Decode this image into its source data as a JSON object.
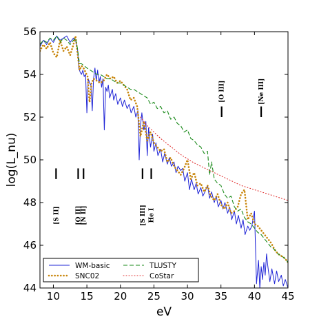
{
  "chart_data": {
    "type": "line",
    "xlabel": "eV",
    "ylabel": "log(L_nu)",
    "xlim": [
      8,
      45
    ],
    "ylim": [
      44,
      56
    ],
    "xticks": [
      10,
      15,
      20,
      25,
      30,
      35,
      40,
      45
    ],
    "yticks": [
      44,
      46,
      48,
      50,
      52,
      54,
      56
    ],
    "legend_position": "lower-left",
    "series": [
      {
        "name": "WM-basic",
        "color": "#1f24d6",
        "style": "solid",
        "x": [
          8,
          8.5,
          9,
          9.5,
          10,
          10.5,
          11,
          11.5,
          12,
          12.5,
          13,
          13.3,
          13.6,
          13.8,
          14.0,
          14.2,
          14.4,
          14.6,
          14.8,
          15.0,
          15.2,
          15.4,
          15.6,
          15.8,
          16.0,
          16.2,
          16.4,
          16.6,
          16.8,
          17.0,
          17.2,
          17.4,
          17.6,
          17.8,
          18.0,
          18.2,
          18.4,
          18.6,
          18.8,
          19.0,
          19.3,
          19.6,
          20.0,
          20.3,
          20.6,
          21.0,
          21.3,
          21.6,
          22.0,
          22.3,
          22.6,
          22.8,
          23.0,
          23.2,
          23.5,
          23.8,
          24.0,
          24.2,
          24.5,
          24.8,
          25.0,
          25.3,
          25.6,
          26.0,
          26.3,
          26.6,
          27.0,
          27.3,
          27.6,
          28.0,
          28.3,
          28.6,
          29.0,
          29.3,
          29.6,
          30.0,
          30.3,
          30.6,
          31.0,
          31.3,
          31.6,
          32.0,
          32.3,
          32.6,
          33.0,
          33.3,
          33.6,
          34.0,
          34.3,
          34.6,
          35.0,
          35.3,
          35.6,
          36.0,
          36.3,
          36.6,
          37.0,
          37.3,
          37.6,
          38.0,
          38.3,
          38.6,
          39.0,
          39.3,
          39.6,
          40.0,
          40.3,
          40.6,
          40.8,
          41.0,
          41.2,
          41.4,
          41.6,
          41.8,
          42.0,
          42.3,
          42.6,
          43.0,
          43.3,
          43.6,
          44.0,
          44.3,
          44.6,
          45.0
        ],
        "y": [
          55.3,
          55.6,
          55.4,
          55.7,
          55.5,
          55.8,
          55.6,
          55.7,
          55.8,
          55.5,
          55.7,
          55.6,
          55.2,
          54.3,
          54.1,
          54.0,
          54.2,
          53.9,
          54.0,
          52.2,
          53.8,
          53.6,
          53.5,
          52.3,
          53.8,
          54.3,
          53.7,
          54.2,
          53.6,
          53.9,
          53.4,
          53.8,
          51.4,
          53.4,
          53.2,
          53.5,
          52.9,
          53.1,
          53.3,
          52.8,
          53.1,
          52.6,
          52.9,
          52.5,
          52.8,
          52.4,
          52.6,
          52.2,
          52.5,
          52.0,
          52.3,
          50.0,
          51.6,
          52.2,
          51.4,
          51.8,
          50.2,
          51.5,
          50.6,
          51.2,
          50.4,
          50.8,
          50.2,
          50.5,
          49.9,
          50.3,
          49.8,
          50.1,
          49.7,
          49.9,
          49.4,
          49.7,
          49.5,
          49.6,
          49.0,
          49.4,
          48.6,
          49.1,
          48.6,
          48.9,
          48.4,
          48.7,
          48.3,
          48.5,
          48.8,
          48.2,
          48.5,
          48.0,
          48.3,
          47.8,
          48.1,
          47.7,
          48.0,
          47.5,
          47.8,
          47.2,
          47.6,
          47.0,
          47.4,
          46.8,
          47.2,
          46.5,
          46.9,
          46.7,
          46.9,
          47.6,
          44.2,
          45.3,
          44.0,
          45.0,
          44.4,
          45.2,
          44.6,
          45.6,
          45.0,
          44.3,
          44.9,
          44.2,
          44.8,
          44.3,
          44.6,
          44.1,
          44.4,
          44.0
        ]
      },
      {
        "name": "SNC02",
        "color": "#c8850a",
        "style": "dotted",
        "x": [
          8,
          8.5,
          9,
          9.5,
          10,
          10.5,
          11,
          11.5,
          12,
          12.5,
          13,
          13.3,
          13.6,
          13.9,
          14.2,
          14.5,
          14.8,
          15.1,
          15.4,
          15.7,
          16.0,
          16.5,
          17.0,
          17.5,
          18.0,
          18.5,
          19.0,
          19.5,
          20.0,
          20.5,
          21.0,
          21.5,
          22.0,
          22.5,
          23.0,
          23.5,
          24.0,
          24.5,
          25.0,
          25.5,
          26.0,
          26.5,
          27.0,
          27.5,
          28.0,
          28.5,
          29.0,
          29.5,
          30.0,
          30.5,
          31.0,
          31.5,
          32.0,
          32.5,
          33.0,
          33.5,
          34.0,
          34.5,
          35.0,
          35.5,
          36.0,
          36.5,
          37.0,
          37.5,
          38.0,
          38.5,
          39.0,
          39.5,
          40.0,
          40.5,
          41.0,
          41.5,
          42.0,
          42.5,
          43.0,
          43.5,
          44.0,
          44.5,
          45.0
        ],
        "y": [
          55.1,
          55.4,
          55.2,
          55.5,
          55.0,
          54.8,
          55.6,
          55.1,
          55.3,
          54.9,
          55.4,
          55.8,
          55.0,
          54.2,
          54.4,
          54.3,
          54.1,
          53.9,
          52.7,
          53.6,
          53.8,
          53.7,
          53.6,
          53.7,
          54.0,
          53.8,
          53.9,
          53.6,
          53.7,
          53.5,
          53.3,
          52.8,
          52.9,
          52.5,
          51.1,
          51.8,
          50.9,
          51.3,
          50.8,
          50.6,
          50.4,
          50.5,
          49.9,
          50.1,
          49.7,
          49.5,
          49.3,
          49.6,
          50.0,
          49.1,
          49.4,
          48.8,
          48.9,
          48.5,
          48.8,
          48.3,
          48.1,
          48.4,
          47.9,
          47.7,
          48.0,
          47.5,
          47.6,
          47.8,
          48.4,
          48.6,
          47.2,
          47.5,
          47.0,
          46.9,
          46.7,
          46.5,
          46.3,
          46.1,
          45.8,
          45.6,
          45.5,
          45.4,
          45.2
        ]
      },
      {
        "name": "TLUSTY",
        "color": "#1a8a1a",
        "style": "dashed",
        "x": [
          8,
          8.5,
          9,
          9.5,
          10,
          10.5,
          11,
          11.5,
          12,
          12.5,
          13,
          13.3,
          13.6,
          13.9,
          14.2,
          14.6,
          15.0,
          15.5,
          16.0,
          16.5,
          17.0,
          17.5,
          18.0,
          18.5,
          19.0,
          19.5,
          20.0,
          20.5,
          21.0,
          21.5,
          22.0,
          22.5,
          23.0,
          23.5,
          24.0,
          24.5,
          25.0,
          25.5,
          26.0,
          26.5,
          27.0,
          27.5,
          28.0,
          28.5,
          29.0,
          29.5,
          30.0,
          30.5,
          31.0,
          31.5,
          32.0,
          32.5,
          33.0,
          33.3,
          33.6,
          34.0,
          34.5,
          35.0,
          35.5,
          36.0,
          36.5,
          37.0,
          37.5,
          38.0,
          38.5,
          39.0,
          39.5,
          40.0,
          40.5,
          41.0,
          41.5,
          42.0,
          42.5,
          43.0,
          43.5,
          44.0,
          44.5,
          45.0
        ],
        "y": [
          55.4,
          55.6,
          55.5,
          55.7,
          55.6,
          55.8,
          55.5,
          55.7,
          55.6,
          55.4,
          55.6,
          55.7,
          55.2,
          54.5,
          54.5,
          54.4,
          54.3,
          54.2,
          54.1,
          54.0,
          54.0,
          53.9,
          53.8,
          53.8,
          53.7,
          53.6,
          53.6,
          53.5,
          53.4,
          53.3,
          53.3,
          53.2,
          53.1,
          53.0,
          52.9,
          52.6,
          52.7,
          52.4,
          52.5,
          52.2,
          52.3,
          51.9,
          52.0,
          51.7,
          51.6,
          51.3,
          51.4,
          51.0,
          50.9,
          50.7,
          50.6,
          50.3,
          50.4,
          49.3,
          49.9,
          49.1,
          48.9,
          48.8,
          48.4,
          48.2,
          48.3,
          47.8,
          47.6,
          47.7,
          47.3,
          47.1,
          47.0,
          46.8,
          46.6,
          46.5,
          46.3,
          46.1,
          45.9,
          45.8,
          45.6,
          45.5,
          45.4,
          45.2
        ]
      },
      {
        "name": "CoStar",
        "color": "#e03030",
        "style": "dotted-fine",
        "x": [
          23.0,
          24.0,
          25.0,
          26.0,
          27.0,
          28.0,
          29.0,
          30.0,
          31.0,
          32.0,
          33.0,
          34.0,
          35.0,
          36.0,
          37.0,
          38.0,
          39.0,
          40.0,
          41.0,
          42.0,
          43.0,
          44.0,
          45.0
        ],
        "y": [
          52.0,
          51.6,
          51.3,
          51.0,
          50.75,
          50.5,
          50.25,
          50.05,
          49.85,
          49.7,
          49.55,
          49.4,
          49.25,
          49.1,
          48.95,
          48.8,
          48.7,
          48.6,
          48.5,
          48.4,
          48.3,
          48.2,
          48.1
        ]
      }
    ],
    "annotations": [
      {
        "label": "[S II]",
        "x": 10.4,
        "bar_y": [
          49.1,
          49.6
        ],
        "text_y": 47.4
      },
      {
        "label": "[O II]",
        "x": 13.7,
        "bar_y": [
          49.1,
          49.6
        ],
        "text_y": 47.4
      },
      {
        "label": "[N II]",
        "x": 14.5,
        "bar_y": [
          49.1,
          49.6
        ],
        "text_y": 47.4
      },
      {
        "label": "[S III]",
        "x": 23.3,
        "bar_y": [
          49.1,
          49.6
        ],
        "text_y": 47.4
      },
      {
        "label": "He I",
        "x": 24.6,
        "bar_y": [
          49.1,
          49.6
        ],
        "text_y": 47.4
      },
      {
        "label": "[O III]",
        "x": 35.1,
        "bar_y": [
          52.0,
          52.5
        ],
        "text_y": 53.2
      },
      {
        "label": "[Ne III]",
        "x": 41.0,
        "bar_y": [
          52.0,
          52.5
        ],
        "text_y": 53.2
      }
    ]
  }
}
